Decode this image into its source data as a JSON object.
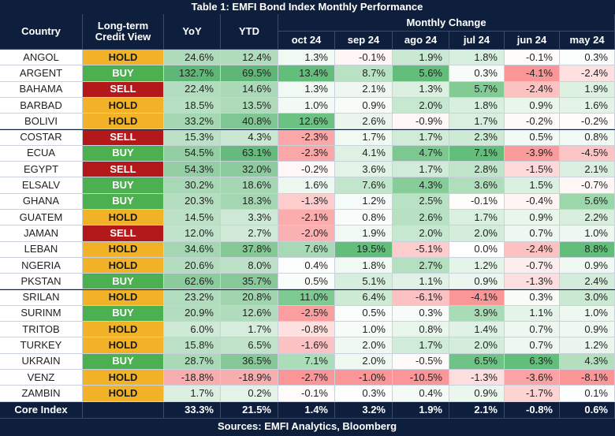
{
  "header": {
    "title": "Table 1: EMFI Bond Index Monthly Performance"
  },
  "columns": {
    "country": "Country",
    "credit_view": "Long-term Credit View",
    "yoy": "YoY",
    "ytd": "YTD",
    "monthly_change": "Monthly Change",
    "months": [
      "oct 24",
      "sep 24",
      "ago 24",
      "jul 24",
      "jun 24",
      "may 24"
    ]
  },
  "rows": [
    [
      "ANGOL",
      "HOLD",
      "24.6%",
      "12.4%",
      "1.3%",
      "-0.1%",
      "1.9%",
      "1.8%",
      "-0.1%",
      "0.3%"
    ],
    [
      "ARGENT",
      "BUY",
      "132.7%",
      "69.5%",
      "13.4%",
      "8.7%",
      "5.6%",
      "0.3%",
      "-4.1%",
      "-2.4%"
    ],
    [
      "BAHAMA",
      "SELL",
      "22.4%",
      "14.6%",
      "1.3%",
      "2.1%",
      "1.3%",
      "5.7%",
      "-2.4%",
      "1.9%"
    ],
    [
      "BARBAD",
      "HOLD",
      "18.5%",
      "13.5%",
      "1.0%",
      "0.9%",
      "2.0%",
      "1.8%",
      "0.9%",
      "1.6%"
    ],
    [
      "BOLIVI",
      "HOLD",
      "33.2%",
      "40.8%",
      "12.6%",
      "2.6%",
      "-0.9%",
      "1.7%",
      "-0.2%",
      "-0.2%"
    ],
    [
      "COSTAR",
      "SELL",
      "15.3%",
      "4.3%",
      "-2.3%",
      "1.7%",
      "1.7%",
      "2.3%",
      "0.5%",
      "0.8%"
    ],
    [
      "ECUA",
      "BUY",
      "54.5%",
      "63.1%",
      "-2.3%",
      "4.1%",
      "4.7%",
      "7.1%",
      "-3.9%",
      "-4.5%"
    ],
    [
      "EGYPT",
      "SELL",
      "54.3%",
      "32.0%",
      "-0.2%",
      "3.6%",
      "1.7%",
      "2.8%",
      "-1.5%",
      "2.1%"
    ],
    [
      "ELSALV",
      "BUY",
      "30.2%",
      "18.6%",
      "1.6%",
      "7.6%",
      "4.3%",
      "3.6%",
      "1.5%",
      "-0.7%"
    ],
    [
      "GHANA",
      "BUY",
      "20.3%",
      "18.3%",
      "-1.3%",
      "1.2%",
      "2.5%",
      "-0.1%",
      "-0.4%",
      "5.6%"
    ],
    [
      "GUATEM",
      "HOLD",
      "14.5%",
      "3.3%",
      "-2.1%",
      "0.8%",
      "2.6%",
      "1.7%",
      "0.9%",
      "2.2%"
    ],
    [
      "JAMAN",
      "SELL",
      "12.0%",
      "2.7%",
      "-2.0%",
      "1.9%",
      "2.0%",
      "2.0%",
      "0.7%",
      "1.0%"
    ],
    [
      "LEBAN",
      "HOLD",
      "34.6%",
      "37.8%",
      "7.6%",
      "19.5%",
      "-5.1%",
      "0.0%",
      "-2.4%",
      "8.8%"
    ],
    [
      "NGERIA",
      "HOLD",
      "20.6%",
      "8.0%",
      "0.4%",
      "1.8%",
      "2.7%",
      "1.2%",
      "-0.7%",
      "0.9%"
    ],
    [
      "PKSTAN",
      "BUY",
      "62.6%",
      "35.7%",
      "0.5%",
      "5.1%",
      "1.1%",
      "0.9%",
      "-1.3%",
      "2.4%"
    ],
    [
      "SRILAN",
      "HOLD",
      "23.2%",
      "20.8%",
      "11.0%",
      "6.4%",
      "-6.1%",
      "-4.1%",
      "0.3%",
      "3.0%"
    ],
    [
      "SURINM",
      "BUY",
      "20.9%",
      "12.6%",
      "-2.5%",
      "0.5%",
      "0.3%",
      "3.9%",
      "1.1%",
      "1.0%"
    ],
    [
      "TRITOB",
      "HOLD",
      "6.0%",
      "1.7%",
      "-0.8%",
      "1.0%",
      "0.8%",
      "1.4%",
      "0.7%",
      "0.9%"
    ],
    [
      "TURKEY",
      "HOLD",
      "15.8%",
      "6.5%",
      "-1.6%",
      "2.0%",
      "1.7%",
      "2.0%",
      "0.7%",
      "1.2%"
    ],
    [
      "UKRAIN",
      "BUY",
      "28.7%",
      "36.5%",
      "7.1%",
      "2.0%",
      "-0.5%",
      "6.5%",
      "6.3%",
      "4.3%"
    ],
    [
      "VENZ",
      "HOLD",
      "-18.8%",
      "-18.9%",
      "-2.7%",
      "-1.0%",
      "-10.5%",
      "-1.3%",
      "-3.6%",
      "-8.1%"
    ],
    [
      "ZAMBIN",
      "HOLD",
      "1.7%",
      "0.2%",
      "-0.1%",
      "0.3%",
      "0.4%",
      "0.9%",
      "-1.7%",
      "0.1%"
    ]
  ],
  "core": {
    "label": "Core Index",
    "values": [
      "33.3%",
      "21.5%",
      "1.4%",
      "3.2%",
      "1.9%",
      "2.1%",
      "-0.8%",
      "0.6%"
    ]
  },
  "footer": "Sources: EMFI Analytics, Bloomberg"
}
